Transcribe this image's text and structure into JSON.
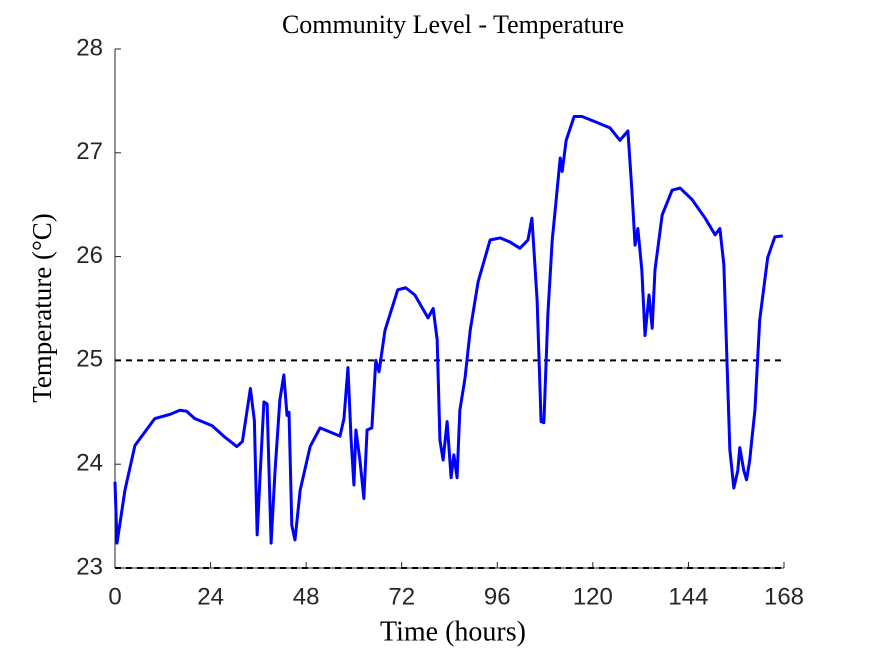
{
  "chart_data": {
    "type": "line",
    "title": "Community Level - Temperature",
    "x_label": "Time (hours)",
    "y_label": "Temperature (°C)",
    "x": [
      0,
      0.5,
      2.5,
      5,
      10,
      13.8,
      16.3,
      18,
      20,
      24.4,
      27.6,
      30.6,
      32,
      34,
      35,
      35.7,
      36.5,
      37.4,
      38.2,
      39.2,
      40.2,
      41.4,
      42.4,
      43.2,
      43.7,
      44.4,
      45.2,
      46.5,
      49,
      51.5,
      54,
      56.5,
      57.5,
      58.5,
      59.3,
      60,
      60.5,
      61.5,
      62.5,
      63.3,
      64.5,
      65.5,
      66.3,
      67.8,
      71,
      73,
      75.3,
      78.6,
      79.9,
      80.9,
      81.6,
      82.4,
      83.4,
      84.4,
      85.1,
      85.9,
      86.6,
      87.9,
      89.2,
      91.2,
      94.2,
      96.7,
      99.2,
      101.7,
      103.7,
      104.7,
      106,
      107,
      107.7,
      108.7,
      109.8,
      110.8,
      111.8,
      112.3,
      113.3,
      115.3,
      117.3,
      120.5,
      124.3,
      126.8,
      128.8,
      129.8,
      130.6,
      131.3,
      132.3,
      133.1,
      134.1,
      134.9,
      135.6,
      137.4,
      139.9,
      141.9,
      144.9,
      148.2,
      150.7,
      151.9,
      152.9,
      154.4,
      155.4,
      156.4,
      156.9,
      157.9,
      158.6,
      159.4,
      159.9,
      160.7,
      161.9,
      163.9,
      165.7,
      167.7
    ],
    "y": [
      23.83,
      23.24,
      23.75,
      24.18,
      24.44,
      24.48,
      24.52,
      24.51,
      24.44,
      24.37,
      24.26,
      24.17,
      24.22,
      24.73,
      24.42,
      23.32,
      23.94,
      24.6,
      24.58,
      23.24,
      23.94,
      24.62,
      24.86,
      24.47,
      24.5,
      23.41,
      23.27,
      23.75,
      24.17,
      24.35,
      24.31,
      24.27,
      24.44,
      24.93,
      24.23,
      23.8,
      24.33,
      24.04,
      23.67,
      24.33,
      24.35,
      25.0,
      24.89,
      25.29,
      25.68,
      25.7,
      25.63,
      25.41,
      25.5,
      25.2,
      24.23,
      24.04,
      24.41,
      23.87,
      24.09,
      23.87,
      24.52,
      24.83,
      25.29,
      25.76,
      26.16,
      26.18,
      26.14,
      26.08,
      26.16,
      26.37,
      25.58,
      24.41,
      24.4,
      25.44,
      26.16,
      26.55,
      26.95,
      26.82,
      27.12,
      27.35,
      27.35,
      27.3,
      27.24,
      27.12,
      27.21,
      26.64,
      26.11,
      26.27,
      25.87,
      25.24,
      25.63,
      25.31,
      25.87,
      26.4,
      26.64,
      26.66,
      26.55,
      26.37,
      26.21,
      26.27,
      25.92,
      24.14,
      23.77,
      23.94,
      24.16,
      23.94,
      23.85,
      24.04,
      24.23,
      24.52,
      25.39,
      25.99,
      26.19,
      26.2
    ],
    "color": "#0000ff",
    "reference_lines": [
      25,
      23
    ],
    "xlim": [
      0,
      168
    ],
    "xticks": [
      0,
      24,
      48,
      72,
      96,
      120,
      144,
      168
    ],
    "ylim": [
      23,
      28
    ],
    "yticks": [
      23,
      24,
      25,
      26,
      27,
      28
    ]
  }
}
